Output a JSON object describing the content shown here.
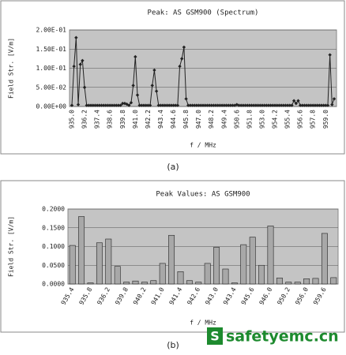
{
  "chart_data": [
    {
      "type": "line",
      "title": "Peak: AS GSM900 (Spectrum)",
      "ylabel": "Field Str. [V/m]",
      "xlabel": "f / MHz",
      "caption": "(a)",
      "color": "#222222",
      "categories": [
        "935.0",
        null,
        null,
        null,
        null,
        null,
        "936.2",
        null,
        null,
        null,
        null,
        null,
        "937.4",
        null,
        null,
        null,
        null,
        null,
        "938.6",
        null,
        null,
        null,
        null,
        null,
        "939.8",
        null,
        null,
        null,
        null,
        null,
        "941.0",
        null,
        null,
        null,
        null,
        null,
        "942.2",
        null,
        null,
        null,
        null,
        null,
        "943.4",
        null,
        null,
        null,
        null,
        null,
        "944.6",
        null,
        null,
        null,
        null,
        null,
        "945.8",
        null,
        null,
        null,
        null,
        null,
        "947.0",
        null,
        null,
        null,
        null,
        null,
        "948.2",
        null,
        null,
        null,
        null,
        null,
        "949.4",
        null,
        null,
        null,
        null,
        null,
        "950.6",
        null,
        null,
        null,
        null,
        null,
        "951.8",
        null,
        null,
        null,
        null,
        null,
        "953.0",
        null,
        null,
        null,
        null,
        null,
        "954.2",
        null,
        null,
        null,
        null,
        null,
        "955.4",
        null,
        null,
        null,
        null,
        null,
        "956.6",
        null,
        null,
        null,
        null,
        null,
        "957.8",
        null,
        null,
        null,
        null,
        null,
        "959.0",
        null,
        null,
        null,
        null
      ],
      "values": [
        0.003,
        0.105,
        0.18,
        0.005,
        0.11,
        0.12,
        0.05,
        0.003,
        0.003,
        0.003,
        0.003,
        0.003,
        0.003,
        0.003,
        0.003,
        0.003,
        0.003,
        0.003,
        0.003,
        0.003,
        0.003,
        0.003,
        0.003,
        0.003,
        0.008,
        0.008,
        0.006,
        0.003,
        0.01,
        0.055,
        0.13,
        0.03,
        0.003,
        0.003,
        0.003,
        0.003,
        0.003,
        0.003,
        0.055,
        0.095,
        0.04,
        0.003,
        0.003,
        0.003,
        0.003,
        0.003,
        0.003,
        0.003,
        0.003,
        0.003,
        0.003,
        0.105,
        0.125,
        0.155,
        0.02,
        0.003,
        0.003,
        0.003,
        0.003,
        0.003,
        0.003,
        0.003,
        0.003,
        0.003,
        0.003,
        0.003,
        0.003,
        0.003,
        0.003,
        0.003,
        0.003,
        0.003,
        0.003,
        0.003,
        0.003,
        0.003,
        0.003,
        0.003,
        0.005,
        0.003,
        0.003,
        0.003,
        0.003,
        0.003,
        0.003,
        0.003,
        0.003,
        0.003,
        0.003,
        0.003,
        0.003,
        0.003,
        0.003,
        0.003,
        0.003,
        0.003,
        0.003,
        0.003,
        0.003,
        0.003,
        0.003,
        0.003,
        0.003,
        0.003,
        0.003,
        0.015,
        0.008,
        0.015,
        0.003,
        0.003,
        0.003,
        0.003,
        0.003,
        0.003,
        0.003,
        0.003,
        0.003,
        0.003,
        0.003,
        0.003,
        0.003,
        0.003,
        0.135,
        0.005,
        0.02
      ],
      "ylim": [
        0,
        0.2
      ],
      "yticks": [
        {
          "value": 0,
          "label": "0.00E+00"
        },
        {
          "value": 0.05,
          "label": "5.00E-02"
        },
        {
          "value": 0.1,
          "label": "1.00E-01"
        },
        {
          "value": 0.15,
          "label": "1.50E-01"
        },
        {
          "value": 0.2,
          "label": "2.00E-01"
        }
      ],
      "grid": true
    },
    {
      "type": "bar",
      "title": "Peak Values: AS GSM900",
      "ylabel": "Field Str. [V/m]",
      "xlabel": "f / MHz",
      "caption": "(b)",
      "color": "#a8a8a8",
      "categories": [
        "935.4",
        null,
        "935.8",
        null,
        "936.2",
        null,
        "939.8",
        null,
        "940.2",
        null,
        "941.0",
        null,
        "941.4",
        null,
        "942.6",
        null,
        "943.0",
        null,
        "943.4",
        null,
        "945.6",
        null,
        "946.0",
        null,
        "950.2",
        null,
        "956.0",
        null,
        "959.6",
        null
      ],
      "values": [
        0.103,
        0.18,
        0.003,
        0.11,
        0.12,
        0.047,
        0.005,
        0.008,
        0.005,
        0.009,
        0.055,
        0.13,
        0.033,
        0.009,
        0.005,
        0.055,
        0.098,
        0.04,
        0.003,
        0.105,
        0.125,
        0.05,
        0.155,
        0.016,
        0.005,
        0.005,
        0.014,
        0.015,
        0.135,
        0.017
      ],
      "ylim": [
        0,
        0.2
      ],
      "yticks": [
        {
          "value": 0,
          "label": "0.0000"
        },
        {
          "value": 0.05,
          "label": "0.0500"
        },
        {
          "value": 0.1,
          "label": "0.1000"
        },
        {
          "value": 0.15,
          "label": "0.1500"
        },
        {
          "value": 0.2,
          "label": "0.2000"
        }
      ],
      "grid": true
    }
  ],
  "watermark_logo": "S",
  "watermark": "safetyemc.cn"
}
